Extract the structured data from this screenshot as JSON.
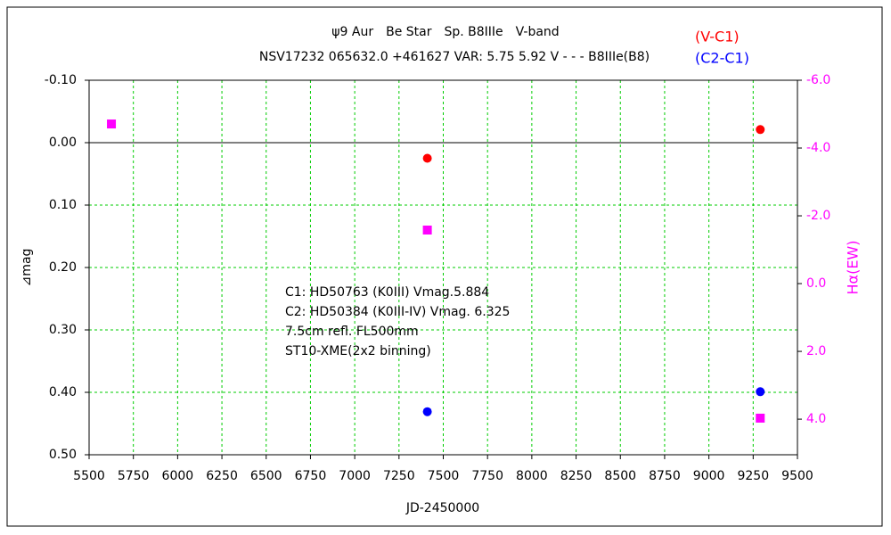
{
  "chart_data": {
    "type": "scatter",
    "title": "ψ9 Aur　Be Star　Sp. B8IIIe　V-band",
    "subtitle": "NSV17232 065632.0 +461627 VAR: 5.75 5.92 V - - - B8IIIe(B8)",
    "x_label": "JD-2450000",
    "y_label": "⊿mag",
    "y2_label": "Hα(EW)",
    "annotations": [
      "C1: HD50763 (K0III) Vmag.5.884",
      "C2: HD50384 (K0III-IV) Vmag. 6.325",
      "7.5cm refl. FL500mm",
      "ST10-XME(2x2 binning)"
    ],
    "xlim": [
      5500,
      9500
    ],
    "xticks": [
      5500,
      5750,
      6000,
      6250,
      6500,
      6750,
      7000,
      7250,
      7500,
      7750,
      8000,
      8250,
      8500,
      8750,
      9000,
      9250,
      9500
    ],
    "ylim": [
      -0.1,
      0.5
    ],
    "yticks": [
      {
        "value": -0.1,
        "label": "-0.10"
      },
      {
        "value": 0,
        "label": "0.00"
      },
      {
        "value": 0.1,
        "label": "0.10"
      },
      {
        "value": 0.2,
        "label": "0.20"
      },
      {
        "value": 0.3,
        "label": "0.30"
      },
      {
        "value": 0.4,
        "label": "0.40"
      },
      {
        "value": 0.5,
        "label": "0.50"
      }
    ],
    "y2lim": [
      -6,
      5.05
    ],
    "y2ticks": [
      {
        "value": -6,
        "label": "-6.0"
      },
      {
        "value": -4,
        "label": "-4.0"
      },
      {
        "value": -2,
        "label": "-2.0"
      },
      {
        "value": 0,
        "label": "0.0"
      },
      {
        "value": 2,
        "label": "2.0"
      },
      {
        "value": 4,
        "label": "4.0"
      }
    ],
    "grid": true,
    "legend": "top-right",
    "series": [
      {
        "name": "(V-C1)",
        "color": "#ff0000",
        "marker": "circle",
        "x": [
          7410,
          9290
        ],
        "values": [
          0.025,
          -0.021
        ]
      },
      {
        "name": "(C2-C1)",
        "color": "#0000ff",
        "marker": "circle",
        "x": [
          7410,
          9290
        ],
        "values": [
          0.431,
          0.399
        ]
      },
      {
        "color": "#ff00ff",
        "marker": "square",
        "axis": "y2",
        "x": [
          5626,
          7410,
          9290
        ],
        "values": [
          -4.71,
          -1.58,
          3.97
        ]
      }
    ]
  }
}
